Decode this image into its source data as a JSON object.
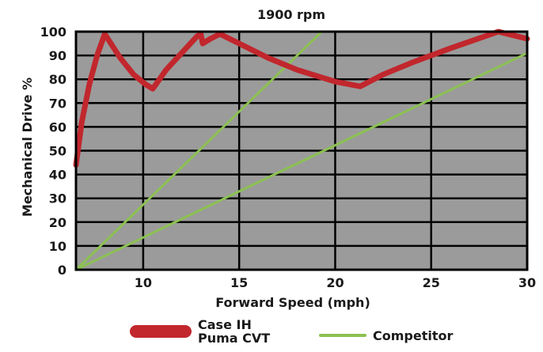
{
  "chart_data": {
    "type": "line",
    "title": "1900 rpm",
    "xlabel": "Forward Speed (mph)",
    "ylabel": "Mechanical Drive %",
    "xlim": [
      6.5,
      30
    ],
    "ylim": [
      0,
      100
    ],
    "x_ticks": [
      10,
      15,
      20,
      25,
      30
    ],
    "x_tick_labels": [
      "10",
      "15",
      "20",
      "25",
      "30"
    ],
    "y_ticks": [
      0,
      10,
      20,
      30,
      40,
      50,
      60,
      70,
      80,
      90,
      100
    ],
    "y_tick_labels": [
      "0",
      "10",
      "20",
      "30",
      "40",
      "50",
      "60",
      "70",
      "80",
      "90",
      "100"
    ],
    "grid": true,
    "plot_background": "#9b9b9b",
    "legend_position": "bottom",
    "series": [
      {
        "name": "Case IH Puma CVT",
        "name_lines": [
          "Case IH",
          "Puma CVT"
        ],
        "color": "#c1272d",
        "x": [
          6.5,
          6.8,
          7.2,
          7.6,
          8.0,
          8.8,
          9.5,
          10.1,
          10.5,
          11.2,
          12.0,
          12.8,
          13.0,
          13.1,
          13.5,
          14.0,
          15.0,
          16.5,
          18.0,
          20.0,
          21.3,
          22.5,
          24.0,
          26.0,
          28.5,
          30.0
        ],
        "y": [
          44,
          62,
          78,
          90,
          99,
          89,
          82,
          78,
          76,
          84,
          91,
          98,
          99,
          95,
          97,
          99,
          95,
          89,
          84,
          79,
          77,
          82,
          87,
          93,
          100,
          97
        ]
      },
      {
        "name": "Competitor",
        "name_lines": [
          "Competitor"
        ],
        "color": "#8cc152",
        "lines": [
          {
            "x": [
              6.5,
              19.3
            ],
            "y": [
              0,
              100
            ]
          },
          {
            "x": [
              6.5,
              30.0
            ],
            "y": [
              0,
              91
            ]
          }
        ]
      }
    ]
  }
}
